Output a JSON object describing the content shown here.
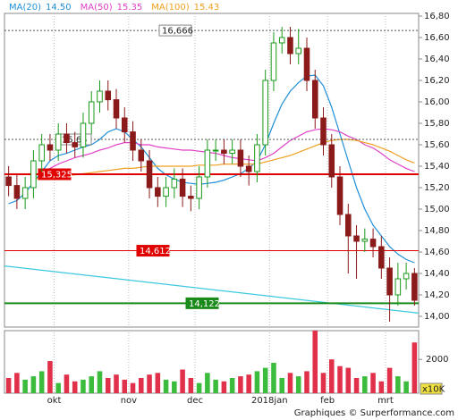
{
  "chart_data": {
    "type": "candlestick",
    "legend": [
      {
        "name": "MA(20)",
        "value": "14.50",
        "color": "#1f8fd8"
      },
      {
        "name": "MA(50)",
        "value": "15.35",
        "color": "#e040c8"
      },
      {
        "name": "MA(100)",
        "value": "15.43",
        "color": "#f0a020"
      }
    ],
    "categories": [
      null,
      null,
      null,
      null,
      null,
      null,
      "okt",
      null,
      null,
      null,
      null,
      null,
      null,
      null,
      null,
      "nov",
      null,
      null,
      null,
      null,
      null,
      null,
      null,
      "dec",
      null,
      null,
      null,
      null,
      null,
      null,
      null,
      null,
      "2018jan",
      null,
      null,
      null,
      null,
      null,
      null,
      "feb",
      null,
      null,
      null,
      null,
      null,
      null,
      "mrt",
      null,
      null,
      null
    ],
    "open": [
      15.3,
      15.22,
      15.1,
      15.2,
      15.45,
      15.6,
      15.55,
      15.7,
      15.62,
      15.58,
      15.8,
      16.0,
      16.1,
      16.02,
      15.85,
      15.72,
      15.55,
      15.45,
      15.2,
      15.12,
      15.2,
      15.28,
      15.12,
      15.1,
      15.3,
      15.55,
      15.55,
      15.52,
      15.55,
      15.4,
      15.35,
      15.6,
      16.2,
      16.55,
      16.6,
      16.45,
      16.5,
      16.2,
      15.85,
      15.6,
      15.3,
      14.95,
      14.75,
      14.7,
      14.72,
      14.65,
      14.45,
      14.2,
      14.35,
      14.4
    ],
    "high": [
      15.4,
      15.32,
      15.3,
      15.55,
      15.7,
      15.7,
      15.8,
      15.8,
      15.72,
      15.9,
      16.1,
      16.2,
      16.2,
      16.12,
      15.95,
      15.82,
      15.65,
      15.55,
      15.3,
      15.3,
      15.38,
      15.38,
      15.22,
      15.4,
      15.65,
      15.65,
      15.65,
      15.65,
      15.65,
      15.5,
      15.7,
      16.3,
      16.65,
      16.7,
      16.7,
      16.68,
      16.6,
      16.3,
      15.95,
      15.7,
      15.4,
      15.05,
      14.85,
      14.82,
      14.82,
      14.75,
      14.55,
      14.5,
      14.5,
      14.45
    ],
    "low": [
      15.12,
      15.0,
      15.0,
      15.1,
      15.35,
      15.45,
      15.45,
      15.52,
      15.48,
      15.48,
      15.7,
      15.9,
      15.92,
      15.75,
      15.62,
      15.45,
      15.35,
      15.1,
      15.02,
      15.02,
      15.1,
      15.02,
      14.98,
      15.0,
      15.2,
      15.45,
      15.42,
      15.42,
      15.3,
      15.22,
      15.25,
      15.5,
      16.1,
      16.45,
      16.35,
      16.35,
      16.1,
      15.75,
      15.5,
      15.2,
      14.85,
      14.4,
      14.35,
      14.6,
      14.55,
      14.35,
      13.95,
      14.1,
      14.25,
      14.1
    ],
    "close": [
      15.22,
      15.1,
      15.2,
      15.45,
      15.6,
      15.55,
      15.7,
      15.62,
      15.58,
      15.8,
      16.0,
      16.1,
      16.02,
      15.85,
      15.72,
      15.55,
      15.45,
      15.2,
      15.12,
      15.2,
      15.28,
      15.12,
      15.1,
      15.3,
      15.55,
      15.55,
      15.52,
      15.55,
      15.4,
      15.35,
      15.6,
      16.2,
      16.55,
      16.6,
      16.45,
      16.5,
      16.2,
      15.85,
      15.6,
      15.3,
      14.95,
      14.75,
      14.7,
      14.72,
      14.65,
      14.45,
      14.2,
      14.35,
      14.4,
      14.15
    ],
    "up_color": "#1a9a1a",
    "down_color": "#8b1a1a",
    "ma": [
      [
        15.05,
        15.08,
        15.15,
        15.25,
        15.35,
        15.45,
        15.5,
        15.52,
        15.55,
        15.58,
        15.6,
        15.65,
        15.72,
        15.75,
        15.72,
        15.65,
        15.58,
        15.48,
        15.38,
        15.32,
        15.28,
        15.25,
        15.24,
        15.23,
        15.24,
        15.25,
        15.27,
        15.3,
        15.33,
        15.38,
        15.45,
        15.6,
        15.8,
        15.98,
        16.1,
        16.18,
        16.24,
        16.25,
        16.15,
        15.95,
        15.7,
        15.45,
        15.2,
        15.0,
        14.85,
        14.75,
        14.65,
        14.58,
        14.53,
        14.5
      ],
      [
        null,
        null,
        null,
        15.3,
        15.35,
        15.38,
        15.42,
        15.45,
        15.48,
        15.5,
        15.52,
        15.55,
        15.57,
        15.6,
        15.62,
        15.62,
        15.6,
        15.6,
        15.58,
        15.57,
        15.56,
        15.55,
        15.55,
        15.54,
        15.53,
        15.52,
        15.5,
        15.48,
        15.47,
        15.46,
        15.45,
        15.48,
        15.52,
        15.58,
        15.64,
        15.68,
        15.72,
        15.74,
        15.75,
        15.74,
        15.72,
        15.68,
        15.65,
        15.6,
        15.57,
        15.52,
        15.46,
        15.42,
        15.38,
        15.35
      ],
      [
        null,
        null,
        null,
        15.28,
        15.29,
        15.3,
        15.3,
        15.31,
        15.32,
        15.33,
        15.34,
        15.35,
        15.36,
        15.37,
        15.38,
        15.38,
        15.39,
        15.4,
        15.4,
        15.4,
        15.4,
        15.4,
        15.4,
        15.41,
        15.41,
        15.41,
        15.42,
        15.42,
        15.42,
        15.42,
        15.42,
        15.44,
        15.46,
        15.48,
        15.5,
        15.53,
        15.56,
        15.59,
        15.62,
        15.64,
        15.65,
        15.65,
        15.64,
        15.62,
        15.6,
        15.57,
        15.54,
        15.5,
        15.46,
        15.43
      ]
    ],
    "levels": [
      {
        "value": 16.666,
        "label": "16,666",
        "color": "#555555",
        "style": "dashed"
      },
      {
        "value": 15.65,
        "label": "15,65",
        "color": "#555555",
        "style": "dashed"
      },
      {
        "value": 15.325,
        "label": "15,325",
        "color": "#e00000",
        "style": "thick"
      },
      {
        "value": 14.612,
        "label": "14,612",
        "color": "#e00000",
        "style": "thin"
      },
      {
        "value": 14.122,
        "label": "14,122",
        "color": "#1a8a1a",
        "style": "thick"
      }
    ],
    "trendline": {
      "values": [
        14.47,
        14.03
      ],
      "color": "#3cc8e0"
    },
    "ylim": [
      13.9,
      16.825
    ],
    "yticks": [
      {
        "value": 14.0,
        "label": "14,00"
      },
      {
        "value": 14.2,
        "label": "14,20"
      },
      {
        "value": 14.4,
        "label": "14,40"
      },
      {
        "value": 14.6,
        "label": "14,60"
      },
      {
        "value": 14.8,
        "label": "14,80"
      },
      {
        "value": 15.0,
        "label": "15,00"
      },
      {
        "value": 15.2,
        "label": "15,20"
      },
      {
        "value": 15.4,
        "label": "15,40"
      },
      {
        "value": 15.6,
        "label": "15,60"
      },
      {
        "value": 15.8,
        "label": "15,80"
      },
      {
        "value": 16.0,
        "label": "16,00"
      },
      {
        "value": 16.2,
        "label": "16,20"
      },
      {
        "value": 16.4,
        "label": "16,40"
      },
      {
        "value": 16.6,
        "label": "16,60"
      },
      {
        "value": 16.8,
        "label": "16,80"
      }
    ],
    "volume": [
      900,
      1200,
      800,
      1000,
      1300,
      1900,
      600,
      1100,
      700,
      800,
      1000,
      1300,
      900,
      1100,
      800,
      600,
      900,
      1100,
      1200,
      800,
      700,
      1400,
      900,
      600,
      1200,
      800,
      700,
      900,
      1000,
      1100,
      1300,
      1500,
      1800,
      900,
      1200,
      1000,
      1300,
      3700,
      1200,
      2000,
      1600,
      1500,
      900,
      1000,
      1200,
      700,
      1500,
      1000,
      700,
      3000
    ],
    "vlim": [
      0,
      3700
    ],
    "vticks": [
      2000
    ],
    "volume_unit": "x10K",
    "footer": "Graphiques © Surperformance.com"
  }
}
